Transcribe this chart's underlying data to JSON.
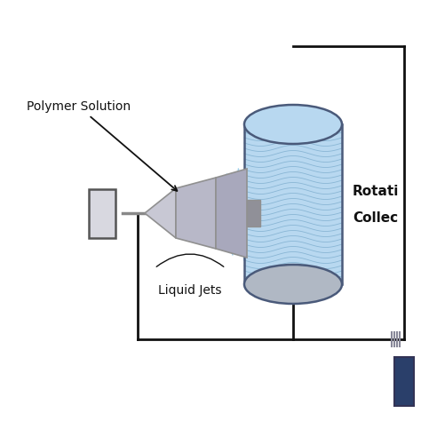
{
  "bg_color": "#ffffff",
  "label_polymer": "Polymer Solution",
  "label_jets": "Liquid Jets",
  "label_collector_1": "Rotati",
  "label_collector_2": "Collec",
  "jet_color": "#90c8e8",
  "cylinder_top_color": "#b8d8f0",
  "cylinder_side_color": "#a8c8e0",
  "cylinder_bottom_color": "#b0b8c0",
  "cylinder_outline": "#4a5a7a",
  "line_color": "#111111",
  "text_color": "#111111",
  "syringe_color": "#c0c0cc",
  "syringe_dark": "#909090"
}
